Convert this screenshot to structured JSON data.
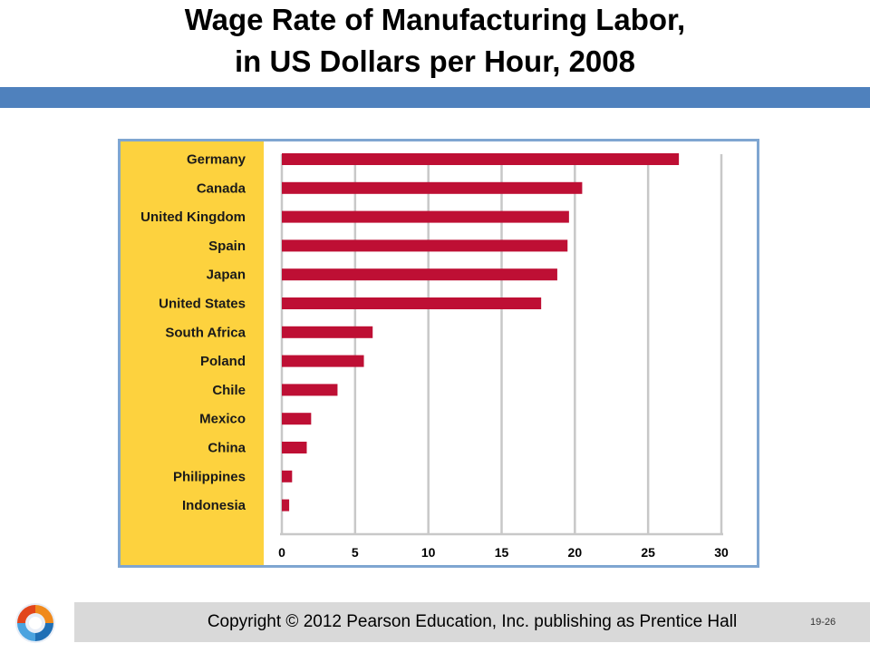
{
  "title": {
    "line1": "Wage Rate of Manufacturing Labor,",
    "line2": "in US Dollars per Hour, 2008"
  },
  "colors": {
    "title_band": "#4f81bd",
    "chart_border": "#7fa6d1",
    "label_panel": "#fdd23e",
    "bar": "#be0f34",
    "grid": "#c8c8c8",
    "footer": "#d9d9d9"
  },
  "chart_data": {
    "type": "bar",
    "orientation": "horizontal",
    "categories": [
      "Germany",
      "Canada",
      "United Kingdom",
      "Spain",
      "Japan",
      "United States",
      "South Africa",
      "Poland",
      "Chile",
      "Mexico",
      "China",
      "Philippines",
      "Indonesia"
    ],
    "values": [
      27.1,
      20.5,
      19.6,
      19.5,
      18.8,
      17.7,
      6.2,
      5.6,
      3.8,
      2.0,
      1.7,
      0.7,
      0.5
    ],
    "xticks": [
      "0",
      "5",
      "10",
      "15",
      "20",
      "25",
      "30"
    ],
    "xlim": [
      0,
      30
    ],
    "grid": true,
    "xlabel": "",
    "ylabel": ""
  },
  "footer": {
    "copyright": "Copyright © 2012 Pearson Education, Inc. publishing as Prentice Hall",
    "slide_number": "19-26"
  },
  "icons": {
    "logo": "pearson-swirl-logo-icon"
  }
}
